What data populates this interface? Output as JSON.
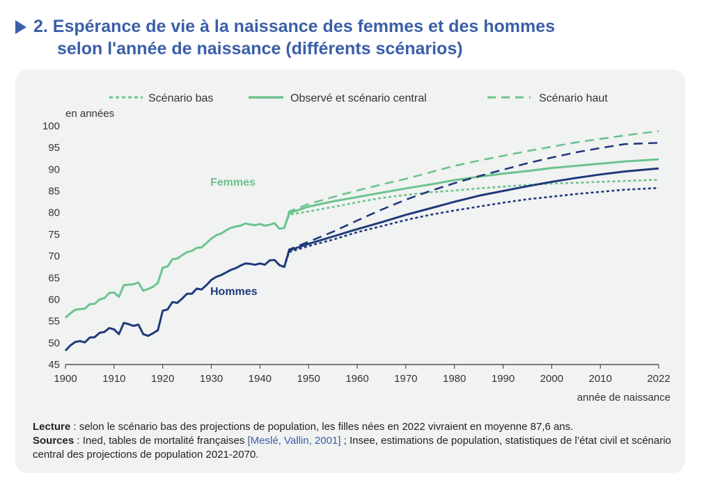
{
  "title": {
    "line1": "2. Espérance de vie à la naissance des femmes et des hommes",
    "line2": "selon l'année de naissance (différents scénarios)"
  },
  "colors": {
    "femmes": "#6cc38e",
    "hommes": "#1f3a7a",
    "title": "#3a5fa8",
    "axis": "#333333"
  },
  "legend": {
    "bas": "Scénario bas",
    "central": "Observé  et scénario central",
    "haut": "Scénario haut"
  },
  "notes": {
    "lecture_label": "Lecture",
    "lecture_text": " : selon le scénario bas des projections de population, les filles nées en 2022 vivraient en moyenne 87,6 ans.",
    "sources_label": "Sources",
    "sources_text1": " : Ined, tables de mortalité françaises ",
    "sources_ref": "[Meslé, Vallin, 2001]",
    "sources_text2": " ; Insee, estimations de population, statistiques de l’état civil et scénario central des projections de population 2021-2070."
  },
  "chart_data": {
    "type": "line",
    "ylabel": "en années",
    "xlabel": "année de naissance",
    "xlim": [
      1900,
      2022
    ],
    "ylim": [
      45,
      100
    ],
    "xticks": [
      1900,
      1910,
      1920,
      1930,
      1940,
      1950,
      1960,
      1970,
      1980,
      1990,
      2000,
      2010,
      2022
    ],
    "yticks": [
      45,
      50,
      55,
      60,
      65,
      70,
      75,
      80,
      85,
      90,
      95,
      100
    ],
    "legend_position": "top",
    "annotations": {
      "femmes": "Femmes",
      "hommes": "Hommes"
    },
    "series": [
      {
        "group": "Femmes",
        "scenario": "central",
        "x": [
          1900,
          1901,
          1902,
          1903,
          1904,
          1905,
          1906,
          1907,
          1908,
          1909,
          1910,
          1911,
          1912,
          1913,
          1914,
          1915,
          1916,
          1917,
          1918,
          1919,
          1920,
          1921,
          1922,
          1923,
          1924,
          1925,
          1926,
          1927,
          1928,
          1929,
          1930,
          1931,
          1932,
          1933,
          1934,
          1935,
          1936,
          1937,
          1938,
          1939,
          1940,
          1941,
          1942,
          1943,
          1944,
          1945,
          1946,
          1950,
          1955,
          1960,
          1965,
          1970,
          1975,
          1980,
          1985,
          1990,
          1995,
          2000,
          2005,
          2010,
          2015,
          2022
        ],
        "y": [
          55.8,
          56.8,
          57.6,
          57.8,
          57.9,
          58.9,
          59.0,
          60.0,
          60.3,
          61.5,
          61.6,
          60.6,
          63.3,
          63.4,
          63.5,
          63.9,
          62.0,
          62.4,
          62.9,
          63.8,
          67.3,
          67.6,
          69.3,
          69.4,
          70.2,
          70.9,
          71.2,
          71.9,
          72.0,
          73.0,
          74.0,
          74.8,
          75.2,
          75.9,
          76.5,
          76.8,
          77.0,
          77.5,
          77.3,
          77.1,
          77.4,
          77.0,
          77.2,
          77.6,
          76.3,
          76.5,
          79.9,
          81.4,
          82.6,
          83.6,
          84.6,
          85.6,
          86.5,
          87.5,
          88.3,
          89.0,
          89.6,
          90.3,
          90.8,
          91.3,
          91.8,
          92.3
        ]
      },
      {
        "group": "Femmes",
        "scenario": "bas",
        "x": [
          1945,
          1946,
          1950,
          1955,
          1960,
          1965,
          1970,
          1975,
          1980,
          1985,
          1990,
          1995,
          2000,
          2005,
          2010,
          2015,
          2022
        ],
        "y": [
          76.5,
          79.5,
          80.3,
          81.3,
          82.4,
          83.4,
          84.1,
          84.7,
          85.1,
          85.6,
          86.0,
          86.4,
          86.7,
          86.9,
          87.1,
          87.3,
          87.6
        ]
      },
      {
        "group": "Femmes",
        "scenario": "haut",
        "x": [
          1945,
          1946,
          1950,
          1955,
          1960,
          1965,
          1970,
          1975,
          1980,
          1985,
          1990,
          1995,
          2000,
          2005,
          2010,
          2015,
          2022
        ],
        "y": [
          76.5,
          80.3,
          82.0,
          83.6,
          85.1,
          86.5,
          87.8,
          89.3,
          90.8,
          92.0,
          93.1,
          94.2,
          95.2,
          96.2,
          97.0,
          97.8,
          98.8
        ]
      },
      {
        "group": "Hommes",
        "scenario": "central",
        "x": [
          1900,
          1901,
          1902,
          1903,
          1904,
          1905,
          1906,
          1907,
          1908,
          1909,
          1910,
          1911,
          1912,
          1913,
          1914,
          1915,
          1916,
          1917,
          1918,
          1919,
          1920,
          1921,
          1922,
          1923,
          1924,
          1925,
          1926,
          1927,
          1928,
          1929,
          1930,
          1931,
          1932,
          1933,
          1934,
          1935,
          1936,
          1937,
          1938,
          1939,
          1940,
          1941,
          1942,
          1943,
          1944,
          1945,
          1946,
          1950,
          1955,
          1960,
          1965,
          1970,
          1975,
          1980,
          1985,
          1990,
          1995,
          2000,
          2005,
          2010,
          2015,
          2022
        ],
        "y": [
          48.2,
          49.4,
          50.2,
          50.4,
          50.1,
          51.2,
          51.3,
          52.3,
          52.5,
          53.4,
          53.1,
          52.0,
          54.6,
          54.3,
          53.9,
          54.2,
          52.0,
          51.6,
          52.2,
          52.9,
          57.4,
          57.7,
          59.4,
          59.2,
          60.2,
          61.3,
          61.3,
          62.5,
          62.3,
          63.3,
          64.5,
          65.2,
          65.6,
          66.2,
          66.8,
          67.2,
          67.8,
          68.3,
          68.2,
          68.0,
          68.3,
          68.0,
          69.0,
          69.1,
          67.9,
          67.5,
          71.3,
          72.8,
          74.5,
          76.2,
          77.8,
          79.5,
          81.0,
          82.5,
          83.9,
          85.0,
          86.1,
          87.1,
          88.0,
          88.8,
          89.5,
          90.2
        ]
      },
      {
        "group": "Hommes",
        "scenario": "bas",
        "x": [
          1945,
          1946,
          1950,
          1955,
          1960,
          1965,
          1970,
          1975,
          1980,
          1985,
          1990,
          1995,
          2000,
          2005,
          2010,
          2015,
          2022
        ],
        "y": [
          67.5,
          70.9,
          72.3,
          73.8,
          75.5,
          76.9,
          78.3,
          79.5,
          80.5,
          81.4,
          82.3,
          83.1,
          83.7,
          84.3,
          84.8,
          85.3,
          85.7
        ]
      },
      {
        "group": "Hommes",
        "scenario": "haut",
        "x": [
          1945,
          1946,
          1950,
          1955,
          1960,
          1965,
          1970,
          1975,
          1980,
          1985,
          1990,
          1995,
          2000,
          2005,
          2010,
          2015,
          2022
        ],
        "y": [
          67.5,
          71.5,
          73.3,
          75.6,
          78.2,
          80.7,
          83.0,
          85.0,
          86.8,
          88.4,
          89.9,
          91.4,
          92.7,
          93.9,
          94.9,
          95.8,
          96.1
        ]
      }
    ]
  }
}
